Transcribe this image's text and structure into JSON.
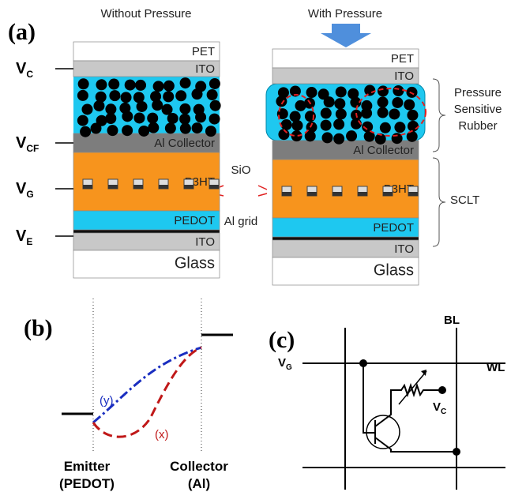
{
  "panel_a": {
    "label": "(a)",
    "left_title": "Without Pressure",
    "right_title": "With Pressure",
    "left_layers": [
      "PET",
      "ITO",
      "Al Collector",
      "P3HT",
      "PEDOT",
      "ITO",
      "Glass"
    ],
    "right_layers": [
      "PET",
      "ITO",
      "Al Collector",
      "P3HT",
      "PEDOT",
      "ITO",
      "Glass"
    ],
    "voltages": [
      {
        "main": "V",
        "sub": "C"
      },
      {
        "main": "V",
        "sub": "CF"
      },
      {
        "main": "V",
        "sub": "G"
      },
      {
        "main": "V",
        "sub": "E"
      }
    ],
    "sio": "SiO",
    "al_grid": "Al grid",
    "rubber": [
      "Pressure",
      "Sensitive",
      "Rubber"
    ],
    "sclt": "SCLT"
  },
  "panel_b": {
    "label": "(b)",
    "curve_y": "(y)",
    "curve_x": "(x)",
    "emitter": [
      "Emitter",
      "(PEDOT)"
    ],
    "collector": [
      "Collector",
      "(Al)"
    ]
  },
  "panel_c": {
    "label": "(c)",
    "bl": "BL",
    "wl": "WL",
    "vg": {
      "main": "V",
      "sub": "G"
    },
    "vc": {
      "main": "V",
      "sub": "C"
    }
  }
}
